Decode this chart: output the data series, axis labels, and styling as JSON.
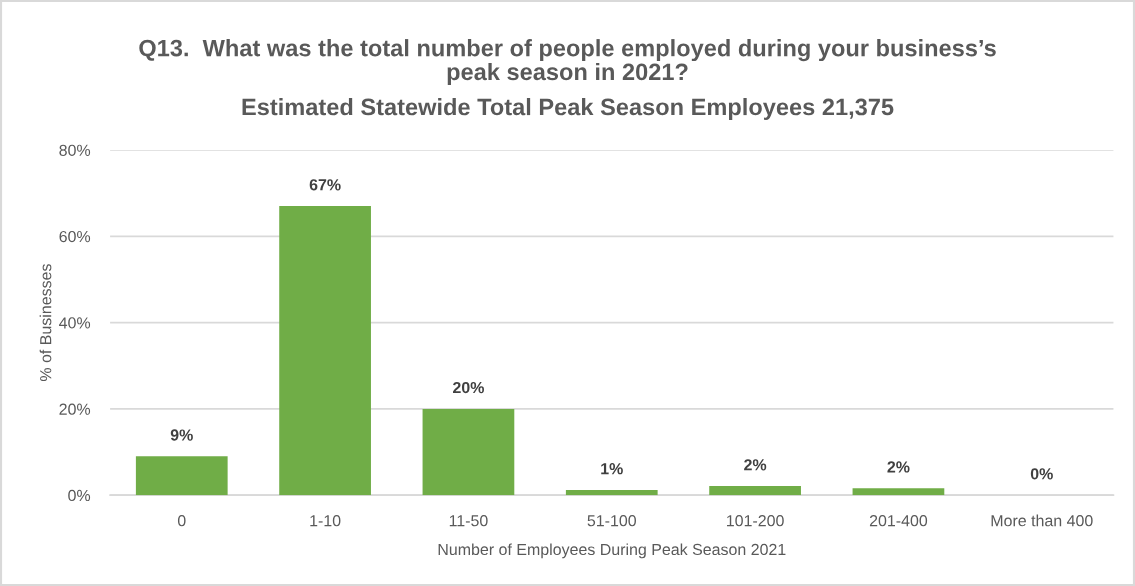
{
  "chart_data": {
    "type": "bar",
    "title": "Q13.  What was the total number of people employed during your business’s\npeak season in 2021?",
    "subtitle": "Estimated Statewide Total Peak Season Employees 21,375",
    "xlabel": "Number of Employees During Peak Season 2021",
    "ylabel": "% of Businesses",
    "categories": [
      "0",
      "1-10",
      "11-50",
      "51-100",
      "101-200",
      "201-400",
      "More than 400"
    ],
    "values": [
      9,
      67,
      20,
      1.2,
      2.1,
      1.6,
      0
    ],
    "value_labels": [
      "9%",
      "67%",
      "20%",
      "1%",
      "2%",
      "2%",
      "0%"
    ],
    "color": "#70ad47",
    "ylim": [
      0,
      80
    ],
    "yticks": [
      {
        "value": 0,
        "label": "0%"
      },
      {
        "value": 20,
        "label": "20%"
      },
      {
        "value": 40,
        "label": "40%"
      },
      {
        "value": 60,
        "label": "60%"
      },
      {
        "value": 80,
        "label": "80%"
      }
    ],
    "grid": "y"
  }
}
